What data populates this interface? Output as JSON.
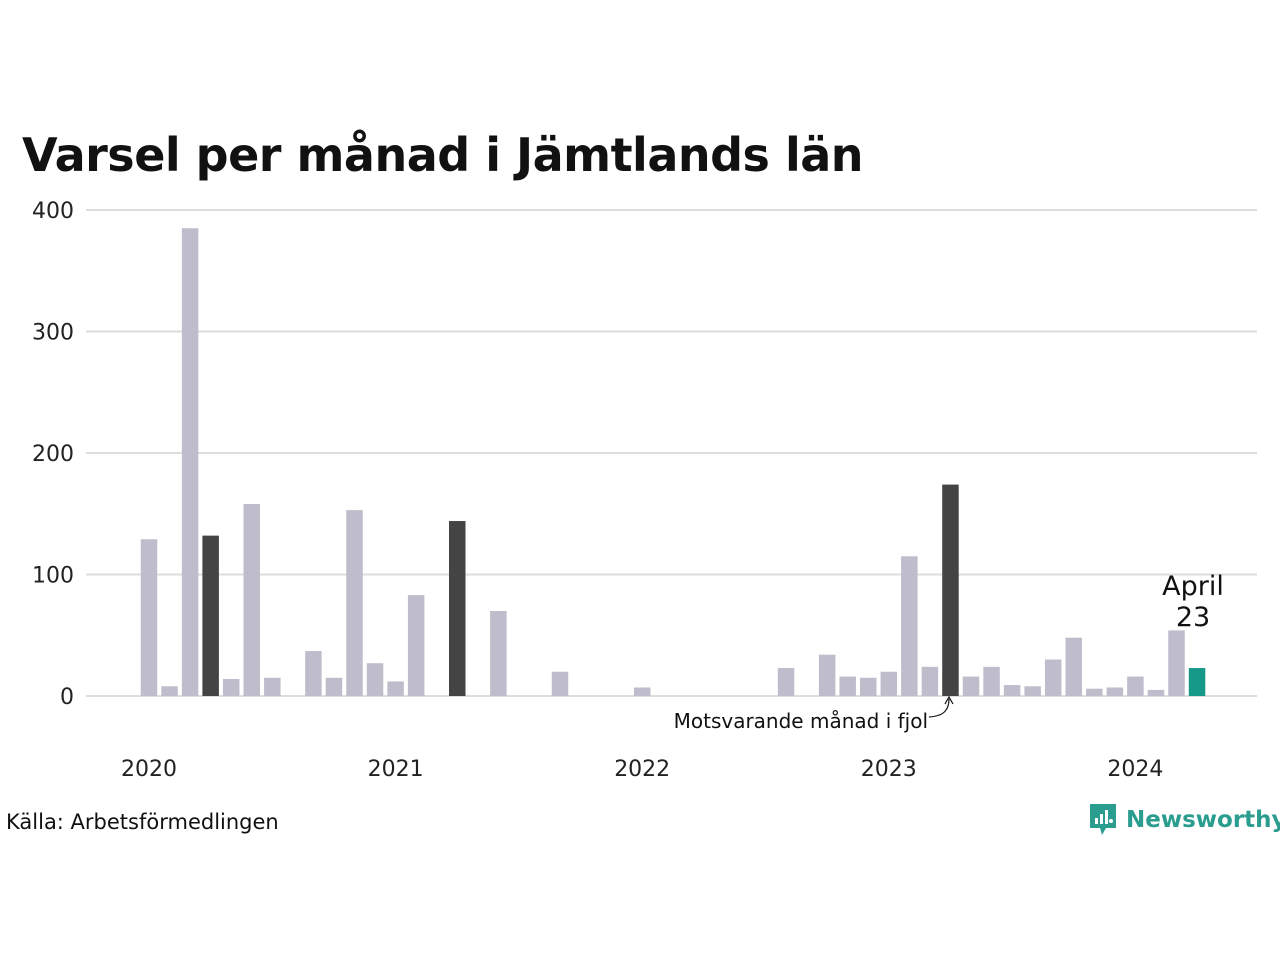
{
  "title": "Varsel per månad i Jämtlands län",
  "source": "Källa: Arbetsförmedlingen",
  "brand": "Newsworthy",
  "colors": {
    "bar": "#bfbdcc",
    "highlight_prev": "#444444",
    "current": "#17998a",
    "grid": "#dddddd",
    "brand": "#2a9d8f"
  },
  "annotations": {
    "current_month": "April",
    "current_value": "23",
    "prev_year_note": "Motsvarande månad i fjol"
  },
  "chart_data": {
    "type": "bar",
    "title": "Varsel per månad i Jämtlands län",
    "ylim": [
      0,
      400
    ],
    "yticks": [
      0,
      100,
      200,
      300,
      400
    ],
    "year_labels": [
      "2020",
      "2021",
      "2022",
      "2023",
      "2024"
    ],
    "grid": true,
    "x": [
      "2020-01",
      "2020-02",
      "2020-03",
      "2020-04",
      "2020-05",
      "2020-06",
      "2020-07",
      "2020-08",
      "2020-09",
      "2020-10",
      "2020-11",
      "2020-12",
      "2021-01",
      "2021-02",
      "2021-03",
      "2021-04",
      "2021-05",
      "2021-06",
      "2021-07",
      "2021-08",
      "2021-09",
      "2021-10",
      "2021-11",
      "2021-12",
      "2022-01",
      "2022-02",
      "2022-03",
      "2022-04",
      "2022-05",
      "2022-06",
      "2022-07",
      "2022-08",
      "2022-09",
      "2022-10",
      "2022-11",
      "2022-12",
      "2023-01",
      "2023-02",
      "2023-03",
      "2023-04",
      "2023-05",
      "2023-06",
      "2023-07",
      "2023-08",
      "2023-09",
      "2023-10",
      "2023-11",
      "2023-12",
      "2024-01",
      "2024-02",
      "2024-03",
      "2024-04"
    ],
    "values": [
      129,
      8,
      385,
      132,
      14,
      158,
      15,
      0,
      37,
      15,
      153,
      27,
      12,
      83,
      0,
      144,
      0,
      70,
      0,
      0,
      20,
      0,
      0,
      0,
      7,
      0,
      0,
      0,
      0,
      0,
      0,
      23,
      0,
      34,
      16,
      15,
      20,
      115,
      24,
      174,
      16,
      24,
      9,
      8,
      30,
      48,
      6,
      7,
      16,
      5,
      54,
      23
    ],
    "highlight_prev_year": [
      "2020-04",
      "2021-04",
      "2023-04"
    ],
    "current": "2024-04"
  }
}
